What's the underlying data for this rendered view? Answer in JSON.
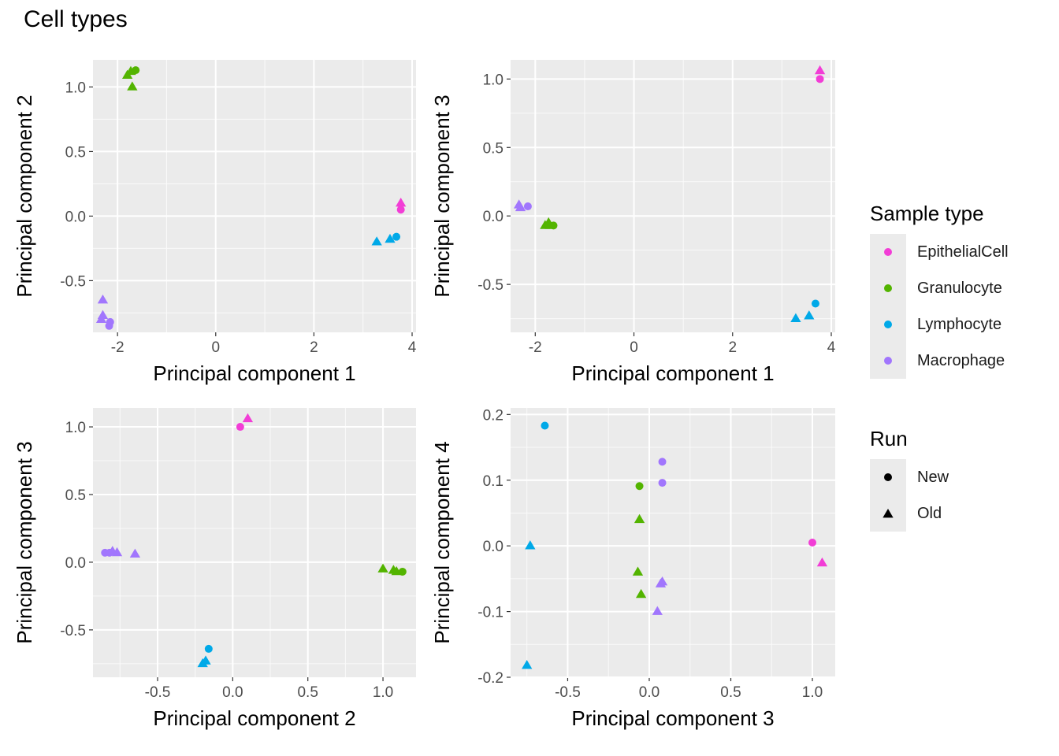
{
  "title": "Cell types",
  "colors": {
    "EpithelialCell": "#f23dd6",
    "Granulocyte": "#53b400",
    "Lymphocyte": "#00a9e8",
    "Macrophage": "#a176fd"
  },
  "legends": {
    "sample_type": {
      "title": "Sample type",
      "items": [
        "EpithelialCell",
        "Granulocyte",
        "Lymphocyte",
        "Macrophage"
      ]
    },
    "run": {
      "title": "Run",
      "items": [
        {
          "label": "New",
          "shape": "circle"
        },
        {
          "label": "Old",
          "shape": "triangle"
        }
      ]
    }
  },
  "chart_data": [
    {
      "type": "scatter",
      "xlabel": "Principal component 1",
      "ylabel": "Principal component 2",
      "xlim": [
        -2.5,
        4.08
      ],
      "ylim": [
        -0.9,
        1.21
      ],
      "xticks": [
        -2,
        0,
        2,
        4
      ],
      "xtick_labels": [
        "-2",
        "0",
        "2",
        "4"
      ],
      "yticks": [
        -0.5,
        0.0,
        0.5,
        1.0
      ],
      "ytick_labels": [
        "-0.5",
        "0.0",
        "0.5",
        "1.0"
      ],
      "grid": true,
      "points": [
        {
          "sample": "Granulocyte",
          "run": "Old",
          "x": -1.8,
          "y": 1.09
        },
        {
          "sample": "Granulocyte",
          "run": "Old",
          "x": -1.73,
          "y": 1.12
        },
        {
          "sample": "Granulocyte",
          "run": "New",
          "x": -1.63,
          "y": 1.13
        },
        {
          "sample": "Granulocyte",
          "run": "Old",
          "x": -1.7,
          "y": 1.0
        },
        {
          "sample": "EpithelialCell",
          "run": "Old",
          "x": 3.77,
          "y": 0.1
        },
        {
          "sample": "EpithelialCell",
          "run": "New",
          "x": 3.77,
          "y": 0.05
        },
        {
          "sample": "Lymphocyte",
          "run": "Old",
          "x": 3.28,
          "y": -0.2
        },
        {
          "sample": "Lymphocyte",
          "run": "Old",
          "x": 3.55,
          "y": -0.18
        },
        {
          "sample": "Lymphocyte",
          "run": "New",
          "x": 3.68,
          "y": -0.16
        },
        {
          "sample": "Macrophage",
          "run": "Old",
          "x": -2.3,
          "y": -0.65
        },
        {
          "sample": "Macrophage",
          "run": "Old",
          "x": -2.3,
          "y": -0.77
        },
        {
          "sample": "Macrophage",
          "run": "Old",
          "x": -2.33,
          "y": -0.8
        },
        {
          "sample": "Macrophage",
          "run": "New",
          "x": -2.15,
          "y": -0.82
        },
        {
          "sample": "Macrophage",
          "run": "New",
          "x": -2.17,
          "y": -0.85
        }
      ]
    },
    {
      "type": "scatter",
      "xlabel": "Principal component 1",
      "ylabel": "Principal component 3",
      "xlim": [
        -2.5,
        4.08
      ],
      "ylim": [
        -0.85,
        1.14
      ],
      "xticks": [
        -2,
        0,
        2,
        4
      ],
      "xtick_labels": [
        "-2",
        "0",
        "2",
        "4"
      ],
      "yticks": [
        -0.5,
        0.0,
        0.5,
        1.0
      ],
      "ytick_labels": [
        "-0.5",
        "0.0",
        "0.5",
        "1.0"
      ],
      "grid": true,
      "points": [
        {
          "sample": "EpithelialCell",
          "run": "Old",
          "x": 3.77,
          "y": 1.06
        },
        {
          "sample": "EpithelialCell",
          "run": "New",
          "x": 3.77,
          "y": 1.0
        },
        {
          "sample": "Macrophage",
          "run": "Old",
          "x": -2.33,
          "y": 0.08
        },
        {
          "sample": "Macrophage",
          "run": "Old",
          "x": -2.3,
          "y": 0.06
        },
        {
          "sample": "Macrophage",
          "run": "New",
          "x": -2.15,
          "y": 0.07
        },
        {
          "sample": "Granulocyte",
          "run": "Old",
          "x": -1.8,
          "y": -0.07
        },
        {
          "sample": "Granulocyte",
          "run": "Old",
          "x": -1.73,
          "y": -0.05
        },
        {
          "sample": "Granulocyte",
          "run": "Old",
          "x": -1.7,
          "y": -0.07
        },
        {
          "sample": "Granulocyte",
          "run": "New",
          "x": -1.63,
          "y": -0.07
        },
        {
          "sample": "Lymphocyte",
          "run": "New",
          "x": 3.68,
          "y": -0.64
        },
        {
          "sample": "Lymphocyte",
          "run": "Old",
          "x": 3.28,
          "y": -0.75
        },
        {
          "sample": "Lymphocyte",
          "run": "Old",
          "x": 3.55,
          "y": -0.73
        }
      ]
    },
    {
      "type": "scatter",
      "xlabel": "Principal component 2",
      "ylabel": "Principal component 3",
      "xlim": [
        -0.93,
        1.22
      ],
      "ylim": [
        -0.85,
        1.14
      ],
      "xticks": [
        -0.5,
        0.0,
        0.5,
        1.0
      ],
      "xtick_labels": [
        "-0.5",
        "0.0",
        "0.5",
        "1.0"
      ],
      "yticks": [
        -0.5,
        0.0,
        0.5,
        1.0
      ],
      "ytick_labels": [
        "-0.5",
        "0.0",
        "0.5",
        "1.0"
      ],
      "grid": true,
      "points": [
        {
          "sample": "EpithelialCell",
          "run": "New",
          "x": 0.05,
          "y": 1.0
        },
        {
          "sample": "EpithelialCell",
          "run": "Old",
          "x": 0.1,
          "y": 1.06
        },
        {
          "sample": "Macrophage",
          "run": "New",
          "x": -0.85,
          "y": 0.07
        },
        {
          "sample": "Macrophage",
          "run": "Old",
          "x": -0.8,
          "y": 0.08
        },
        {
          "sample": "Macrophage",
          "run": "Old",
          "x": -0.77,
          "y": 0.07
        },
        {
          "sample": "Macrophage",
          "run": "New",
          "x": -0.82,
          "y": 0.07
        },
        {
          "sample": "Macrophage",
          "run": "Old",
          "x": -0.65,
          "y": 0.06
        },
        {
          "sample": "Granulocyte",
          "run": "Old",
          "x": 1.0,
          "y": -0.05
        },
        {
          "sample": "Granulocyte",
          "run": "Old",
          "x": 1.07,
          "y": -0.06
        },
        {
          "sample": "Granulocyte",
          "run": "Old",
          "x": 1.09,
          "y": -0.07
        },
        {
          "sample": "Granulocyte",
          "run": "New",
          "x": 1.13,
          "y": -0.07
        },
        {
          "sample": "Lymphocyte",
          "run": "New",
          "x": -0.16,
          "y": -0.64
        },
        {
          "sample": "Lymphocyte",
          "run": "Old",
          "x": -0.18,
          "y": -0.73
        },
        {
          "sample": "Lymphocyte",
          "run": "Old",
          "x": -0.2,
          "y": -0.75
        }
      ]
    },
    {
      "type": "scatter",
      "xlabel": "Principal component 3",
      "ylabel": "Principal component 4",
      "xlim": [
        -0.85,
        1.14
      ],
      "ylim": [
        -0.2,
        0.21
      ],
      "xticks": [
        -0.5,
        0.0,
        0.5,
        1.0
      ],
      "xtick_labels": [
        "-0.5",
        "0.0",
        "0.5",
        "1.0"
      ],
      "yticks": [
        -0.2,
        -0.1,
        0.0,
        0.1,
        0.2
      ],
      "ytick_labels": [
        "-0.2",
        "-0.1",
        "0.0",
        "0.1",
        "0.2"
      ],
      "grid": true,
      "points": [
        {
          "sample": "Lymphocyte",
          "run": "New",
          "x": -0.64,
          "y": 0.183
        },
        {
          "sample": "Lymphocyte",
          "run": "Old",
          "x": -0.73,
          "y": 0.0
        },
        {
          "sample": "Lymphocyte",
          "run": "Old",
          "x": -0.75,
          "y": -0.182
        },
        {
          "sample": "Macrophage",
          "run": "New",
          "x": 0.08,
          "y": 0.128
        },
        {
          "sample": "Macrophage",
          "run": "New",
          "x": 0.08,
          "y": 0.096
        },
        {
          "sample": "Macrophage",
          "run": "Old",
          "x": 0.08,
          "y": -0.055
        },
        {
          "sample": "Macrophage",
          "run": "Old",
          "x": 0.07,
          "y": -0.058
        },
        {
          "sample": "Macrophage",
          "run": "Old",
          "x": 0.05,
          "y": -0.1
        },
        {
          "sample": "Granulocyte",
          "run": "New",
          "x": -0.06,
          "y": 0.091
        },
        {
          "sample": "Granulocyte",
          "run": "Old",
          "x": -0.06,
          "y": 0.04
        },
        {
          "sample": "Granulocyte",
          "run": "Old",
          "x": -0.07,
          "y": -0.04
        },
        {
          "sample": "Granulocyte",
          "run": "Old",
          "x": -0.05,
          "y": -0.074
        },
        {
          "sample": "EpithelialCell",
          "run": "New",
          "x": 1.0,
          "y": 0.005
        },
        {
          "sample": "EpithelialCell",
          "run": "Old",
          "x": 1.06,
          "y": -0.026
        }
      ]
    }
  ]
}
